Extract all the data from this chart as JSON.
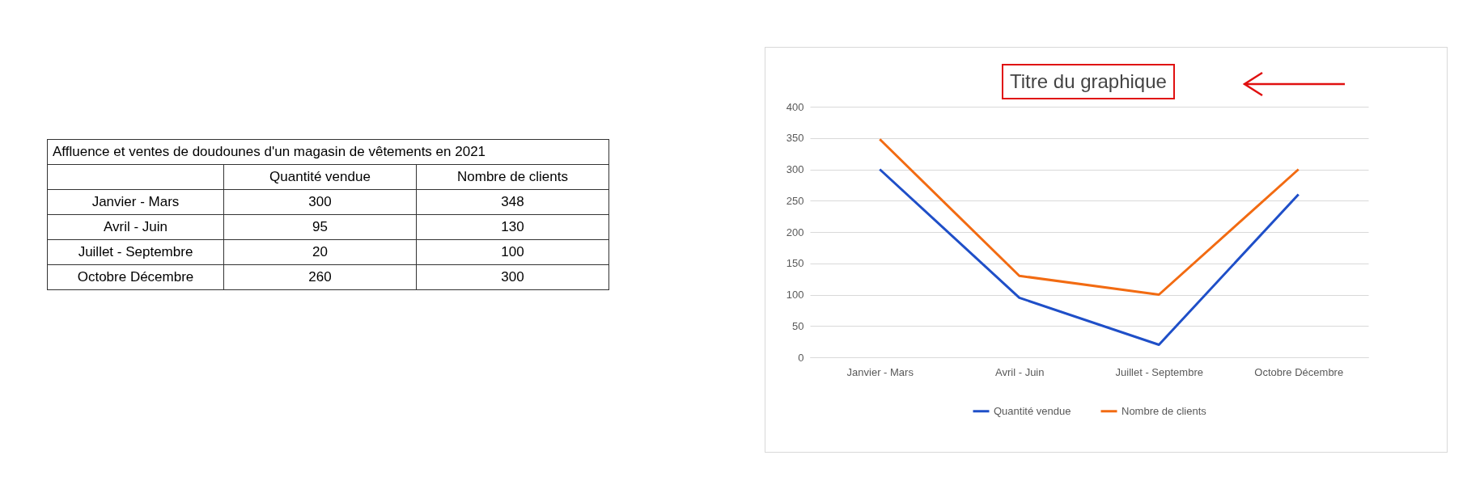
{
  "chart_data": [
    {
      "type": "other",
      "title": "Affluence et ventes de doudounes d'un magasin de vêtements en 2021",
      "categories": [
        "Janvier - Mars",
        "Avril - Juin",
        "Juillet - Septembre",
        "Octobre Décembre"
      ],
      "series": [
        {
          "name": "Quantité vendue",
          "values": [
            300,
            95,
            20,
            260
          ]
        },
        {
          "name": "Nombre de clients",
          "values": [
            348,
            130,
            100,
            300
          ]
        }
      ],
      "data_labels": true
    },
    {
      "type": "line",
      "title": "Titre du graphique",
      "categories": [
        "Janvier - Mars",
        "Avril - Juin",
        "Juillet - Septembre",
        "Octobre Décembre"
      ],
      "series": [
        {
          "name": "Quantité vendue",
          "color": "#1f4fc8",
          "values": [
            300,
            95,
            20,
            260
          ]
        },
        {
          "name": "Nombre de clients",
          "color": "#f26b12",
          "values": [
            348,
            130,
            100,
            300
          ]
        }
      ],
      "ylim": [
        0,
        400
      ],
      "yticks": [
        0,
        50,
        100,
        150,
        200,
        250,
        300,
        350,
        400
      ],
      "grid": "y",
      "legend": "bottom"
    }
  ]
}
